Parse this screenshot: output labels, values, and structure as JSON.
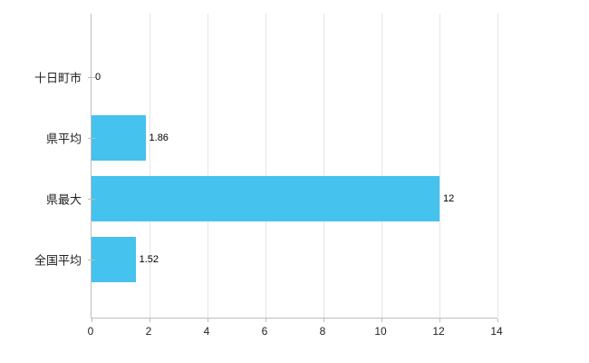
{
  "chart_data": {
    "type": "bar",
    "orientation": "horizontal",
    "title": "",
    "xlabel": "",
    "ylabel": "",
    "categories": [
      "十日町市",
      "県平均",
      "県最大",
      "全国平均"
    ],
    "values": [
      0,
      1.86,
      12,
      1.52
    ],
    "value_labels": [
      "0",
      "1.86",
      "12",
      "1.52"
    ],
    "x_ticks": [
      0,
      2,
      4,
      6,
      8,
      10,
      12,
      14
    ],
    "x_tick_labels": [
      "0",
      "2",
      "4",
      "6",
      "8",
      "10",
      "12",
      "14"
    ],
    "xlim": [
      0,
      14
    ],
    "grid": true,
    "legend": false,
    "bar_color": "#45c2ee",
    "grid_color": "#e5e5e5",
    "axis_color": "#bdbdbd",
    "text_color": "#222222"
  }
}
